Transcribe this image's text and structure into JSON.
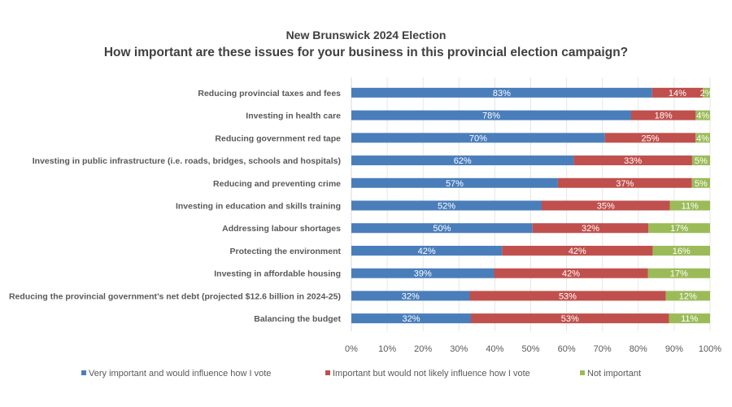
{
  "chart_data": {
    "type": "bar",
    "orientation": "horizontal",
    "stacked": "percent",
    "title": "New Brunswick 2024 Election",
    "subtitle": "How important are these issues for your business in this provincial election campaign?",
    "categories": [
      "Reducing provincial taxes and fees",
      "Investing in health care",
      "Reducing government red tape",
      "Investing in public infrastructure (i.e. roads, bridges, schools and hospitals)",
      "Reducing and preventing crime",
      "Investing in education and skills training",
      "Addressing labour shortages",
      "Protecting the environment",
      "Investing in affordable housing",
      "Reducing the provincial government’s net debt (projected $12.6 billion in 2024-25)",
      "Balancing the budget"
    ],
    "series": [
      {
        "name": "Very important and would influence how I vote",
        "color": "#4a7ebb",
        "values": [
          83,
          78,
          70,
          62,
          57,
          52,
          50,
          42,
          39,
          32,
          32
        ]
      },
      {
        "name": "Important but would not likely influence how I vote",
        "color": "#c0504d",
        "values": [
          14,
          18,
          25,
          33,
          37,
          35,
          32,
          42,
          42,
          53,
          53
        ]
      },
      {
        "name": "Not important",
        "color": "#9bbb59",
        "values": [
          2,
          4,
          4,
          5,
          5,
          11,
          17,
          16,
          17,
          12,
          11
        ]
      }
    ],
    "xlim": [
      0,
      100
    ],
    "x_ticks": [
      "0%",
      "10%",
      "20%",
      "30%",
      "40%",
      "50%",
      "60%",
      "70%",
      "80%",
      "90%",
      "100%"
    ],
    "value_format": "percent",
    "grid": "vertical",
    "legend_position": "bottom"
  }
}
